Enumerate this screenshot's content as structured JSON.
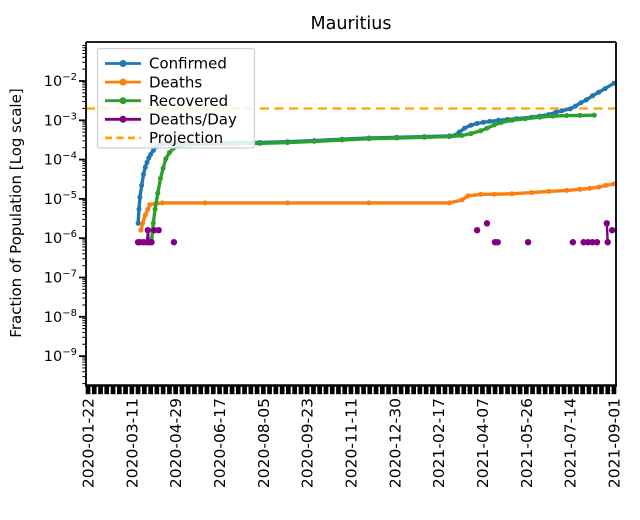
{
  "title": "Mauritius",
  "axes": {
    "ylabel": "Fraction of Population [Log scale]",
    "x_ticks": [
      "2020-01-22",
      "2020-03-11",
      "2020-04-29",
      "2020-06-17",
      "2020-08-05",
      "2020-09-23",
      "2020-11-11",
      "2020-12-30",
      "2021-02-17",
      "2021-04-07",
      "2021-05-26",
      "2021-07-14",
      "2021-09-01"
    ],
    "y_tick_exponents": [
      -2,
      -3,
      -4,
      -5,
      -6,
      -7,
      -8,
      -9
    ]
  },
  "legend": [
    {
      "label": "Confirmed",
      "color": "#1f77b4",
      "style": "line-marker"
    },
    {
      "label": "Deaths",
      "color": "#ff7f0e",
      "style": "line-marker"
    },
    {
      "label": "Recovered",
      "color": "#2ca02c",
      "style": "line-marker"
    },
    {
      "label": "Deaths/Day",
      "color": "#800080",
      "style": "line-marker"
    },
    {
      "label": "Projection",
      "color": "#ffa500",
      "style": "dashed"
    }
  ],
  "chart_data": {
    "type": "line",
    "title": "Mauritius",
    "xlabel": "",
    "ylabel": "Fraction of Population [Log scale]",
    "yscale": "log",
    "ylim": [
      2e-10,
      0.09
    ],
    "x_range": [
      "2020-01-22",
      "2021-09-01"
    ],
    "grid": false,
    "legend_position": "upper left",
    "projection_value": 0.002,
    "series": [
      {
        "name": "Confirmed",
        "color": "#1f77b4",
        "marker": "circle",
        "points": [
          [
            "2020-03-18",
            2.4e-06
          ],
          [
            "2020-03-19",
            5.5e-06
          ],
          [
            "2020-03-20",
            1.1e-05
          ],
          [
            "2020-03-22",
            2.2e-05
          ],
          [
            "2020-03-24",
            4.2e-05
          ],
          [
            "2020-03-26",
            6.4e-05
          ],
          [
            "2020-03-28",
            8.5e-05
          ],
          [
            "2020-03-30",
            0.00011
          ],
          [
            "2020-04-01",
            0.000135
          ],
          [
            "2020-04-04",
            0.00017
          ],
          [
            "2020-04-07",
            0.00021
          ],
          [
            "2020-04-11",
            0.00024
          ],
          [
            "2020-04-16",
            0.000255
          ],
          [
            "2020-04-24",
            0.00026
          ],
          [
            "2020-06-01",
            0.000265
          ],
          [
            "2020-08-01",
            0.000272
          ],
          [
            "2020-09-01",
            0.000285
          ],
          [
            "2020-10-01",
            0.000305
          ],
          [
            "2020-11-01",
            0.00033
          ],
          [
            "2020-12-01",
            0.000355
          ],
          [
            "2021-01-01",
            0.00037
          ],
          [
            "2021-02-01",
            0.000385
          ],
          [
            "2021-03-01",
            0.0004
          ],
          [
            "2021-03-08",
            0.00042
          ],
          [
            "2021-03-12",
            0.0005
          ],
          [
            "2021-03-18",
            0.00063
          ],
          [
            "2021-03-25",
            0.00075
          ],
          [
            "2021-04-01",
            0.00083
          ],
          [
            "2021-04-08",
            0.00089
          ],
          [
            "2021-04-15",
            0.00094
          ],
          [
            "2021-04-25",
            0.001
          ],
          [
            "2021-05-05",
            0.00105
          ],
          [
            "2021-05-15",
            0.0011
          ],
          [
            "2021-06-01",
            0.0012
          ],
          [
            "2021-06-10",
            0.00128
          ],
          [
            "2021-06-20",
            0.0014
          ],
          [
            "2021-06-28",
            0.0016
          ],
          [
            "2021-07-05",
            0.00175
          ],
          [
            "2021-07-14",
            0.00195
          ],
          [
            "2021-07-20",
            0.0023
          ],
          [
            "2021-07-26",
            0.0028
          ],
          [
            "2021-08-01",
            0.0033
          ],
          [
            "2021-08-08",
            0.0042
          ],
          [
            "2021-08-15",
            0.0052
          ],
          [
            "2021-08-22",
            0.0064
          ],
          [
            "2021-09-01",
            0.0088
          ]
        ]
      },
      {
        "name": "Deaths",
        "color": "#ff7f0e",
        "marker": "circle",
        "points": [
          [
            "2020-03-21",
            1.6e-06
          ],
          [
            "2020-03-23",
            2.4e-06
          ],
          [
            "2020-03-26",
            3.9e-06
          ],
          [
            "2020-03-29",
            5.5e-06
          ],
          [
            "2020-03-31",
            7.1e-06
          ],
          [
            "2020-04-06",
            7.5e-06
          ],
          [
            "2020-04-14",
            7.9e-06
          ],
          [
            "2020-06-01",
            7.9e-06
          ],
          [
            "2020-09-01",
            7.9e-06
          ],
          [
            "2020-12-01",
            7.9e-06
          ],
          [
            "2021-03-01",
            7.9e-06
          ],
          [
            "2021-03-15",
            9.4e-06
          ],
          [
            "2021-03-22",
            1.2e-05
          ],
          [
            "2021-04-05",
            1.3e-05
          ],
          [
            "2021-04-20",
            1.32e-05
          ],
          [
            "2021-05-10",
            1.35e-05
          ],
          [
            "2021-06-01",
            1.45e-05
          ],
          [
            "2021-06-20",
            1.55e-05
          ],
          [
            "2021-07-10",
            1.65e-05
          ],
          [
            "2021-07-25",
            1.75e-05
          ],
          [
            "2021-08-05",
            1.85e-05
          ],
          [
            "2021-08-15",
            2e-05
          ],
          [
            "2021-08-23",
            2.2e-05
          ],
          [
            "2021-09-01",
            2.4e-05
          ]
        ]
      },
      {
        "name": "Recovered",
        "color": "#2ca02c",
        "marker": "circle",
        "points": [
          [
            "2020-04-02",
            8e-07
          ],
          [
            "2020-04-04",
            2.4e-06
          ],
          [
            "2020-04-06",
            5.5e-06
          ],
          [
            "2020-04-09",
            1.4e-05
          ],
          [
            "2020-04-12",
            3.3e-05
          ],
          [
            "2020-04-15",
            6e-05
          ],
          [
            "2020-04-18",
            0.000105
          ],
          [
            "2020-04-22",
            0.00015
          ],
          [
            "2020-04-27",
            0.0002
          ],
          [
            "2020-05-08",
            0.000235
          ],
          [
            "2020-06-01",
            0.00025
          ],
          [
            "2020-08-01",
            0.000258
          ],
          [
            "2020-09-01",
            0.00027
          ],
          [
            "2020-10-01",
            0.00029
          ],
          [
            "2020-11-01",
            0.000315
          ],
          [
            "2020-12-01",
            0.00034
          ],
          [
            "2021-01-01",
            0.000355
          ],
          [
            "2021-02-01",
            0.00037
          ],
          [
            "2021-03-01",
            0.000385
          ],
          [
            "2021-03-15",
            0.00041
          ],
          [
            "2021-03-25",
            0.00046
          ],
          [
            "2021-04-05",
            0.00054
          ],
          [
            "2021-04-12",
            0.00063
          ],
          [
            "2021-04-20",
            0.00076
          ],
          [
            "2021-04-28",
            0.00088
          ],
          [
            "2021-05-10",
            0.001
          ],
          [
            "2021-05-25",
            0.0011
          ],
          [
            "2021-06-10",
            0.0012
          ],
          [
            "2021-06-25",
            0.00128
          ],
          [
            "2021-07-10",
            0.00132
          ],
          [
            "2021-07-25",
            0.00133
          ],
          [
            "2021-08-10",
            0.00135
          ]
        ]
      },
      {
        "name": "Deaths/Day",
        "color": "#800080",
        "marker": "circle",
        "segments": [
          [
            [
              "2020-03-18",
              7.9e-07
            ],
            [
              "2020-03-20",
              7.9e-07
            ]
          ],
          [
            [
              "2020-03-24",
              7.9e-07
            ]
          ],
          [
            [
              "2020-03-28",
              7.9e-07
            ],
            [
              "2020-03-29",
              1.6e-06
            ],
            [
              "2020-03-30",
              7.9e-07
            ]
          ],
          [
            [
              "2020-04-02",
              7.9e-07
            ]
          ],
          [
            [
              "2020-04-05",
              1.6e-06
            ]
          ],
          [
            [
              "2020-04-10",
              1.6e-06
            ]
          ],
          [
            [
              "2020-04-27",
              7.9e-07
            ]
          ],
          [
            [
              "2021-04-01",
              1.6e-06
            ]
          ],
          [
            [
              "2021-04-12",
              2.4e-06
            ]
          ],
          [
            [
              "2021-04-21",
              7.9e-07
            ],
            [
              "2021-04-24",
              7.9e-07
            ]
          ],
          [
            [
              "2021-05-28",
              7.9e-07
            ]
          ],
          [
            [
              "2021-07-17",
              7.9e-07
            ]
          ],
          [
            [
              "2021-07-29",
              7.9e-07
            ]
          ],
          [
            [
              "2021-08-03",
              7.9e-07
            ]
          ],
          [
            [
              "2021-08-08",
              7.9e-07
            ]
          ],
          [
            [
              "2021-08-13",
              7.9e-07
            ]
          ],
          [
            [
              "2021-08-24",
              2.4e-06
            ],
            [
              "2021-08-25",
              7.9e-07
            ]
          ],
          [
            [
              "2021-08-30",
              1.6e-06
            ]
          ]
        ]
      },
      {
        "name": "Projection",
        "color": "#ffa500",
        "style": "dashed",
        "value": 0.002
      }
    ]
  }
}
